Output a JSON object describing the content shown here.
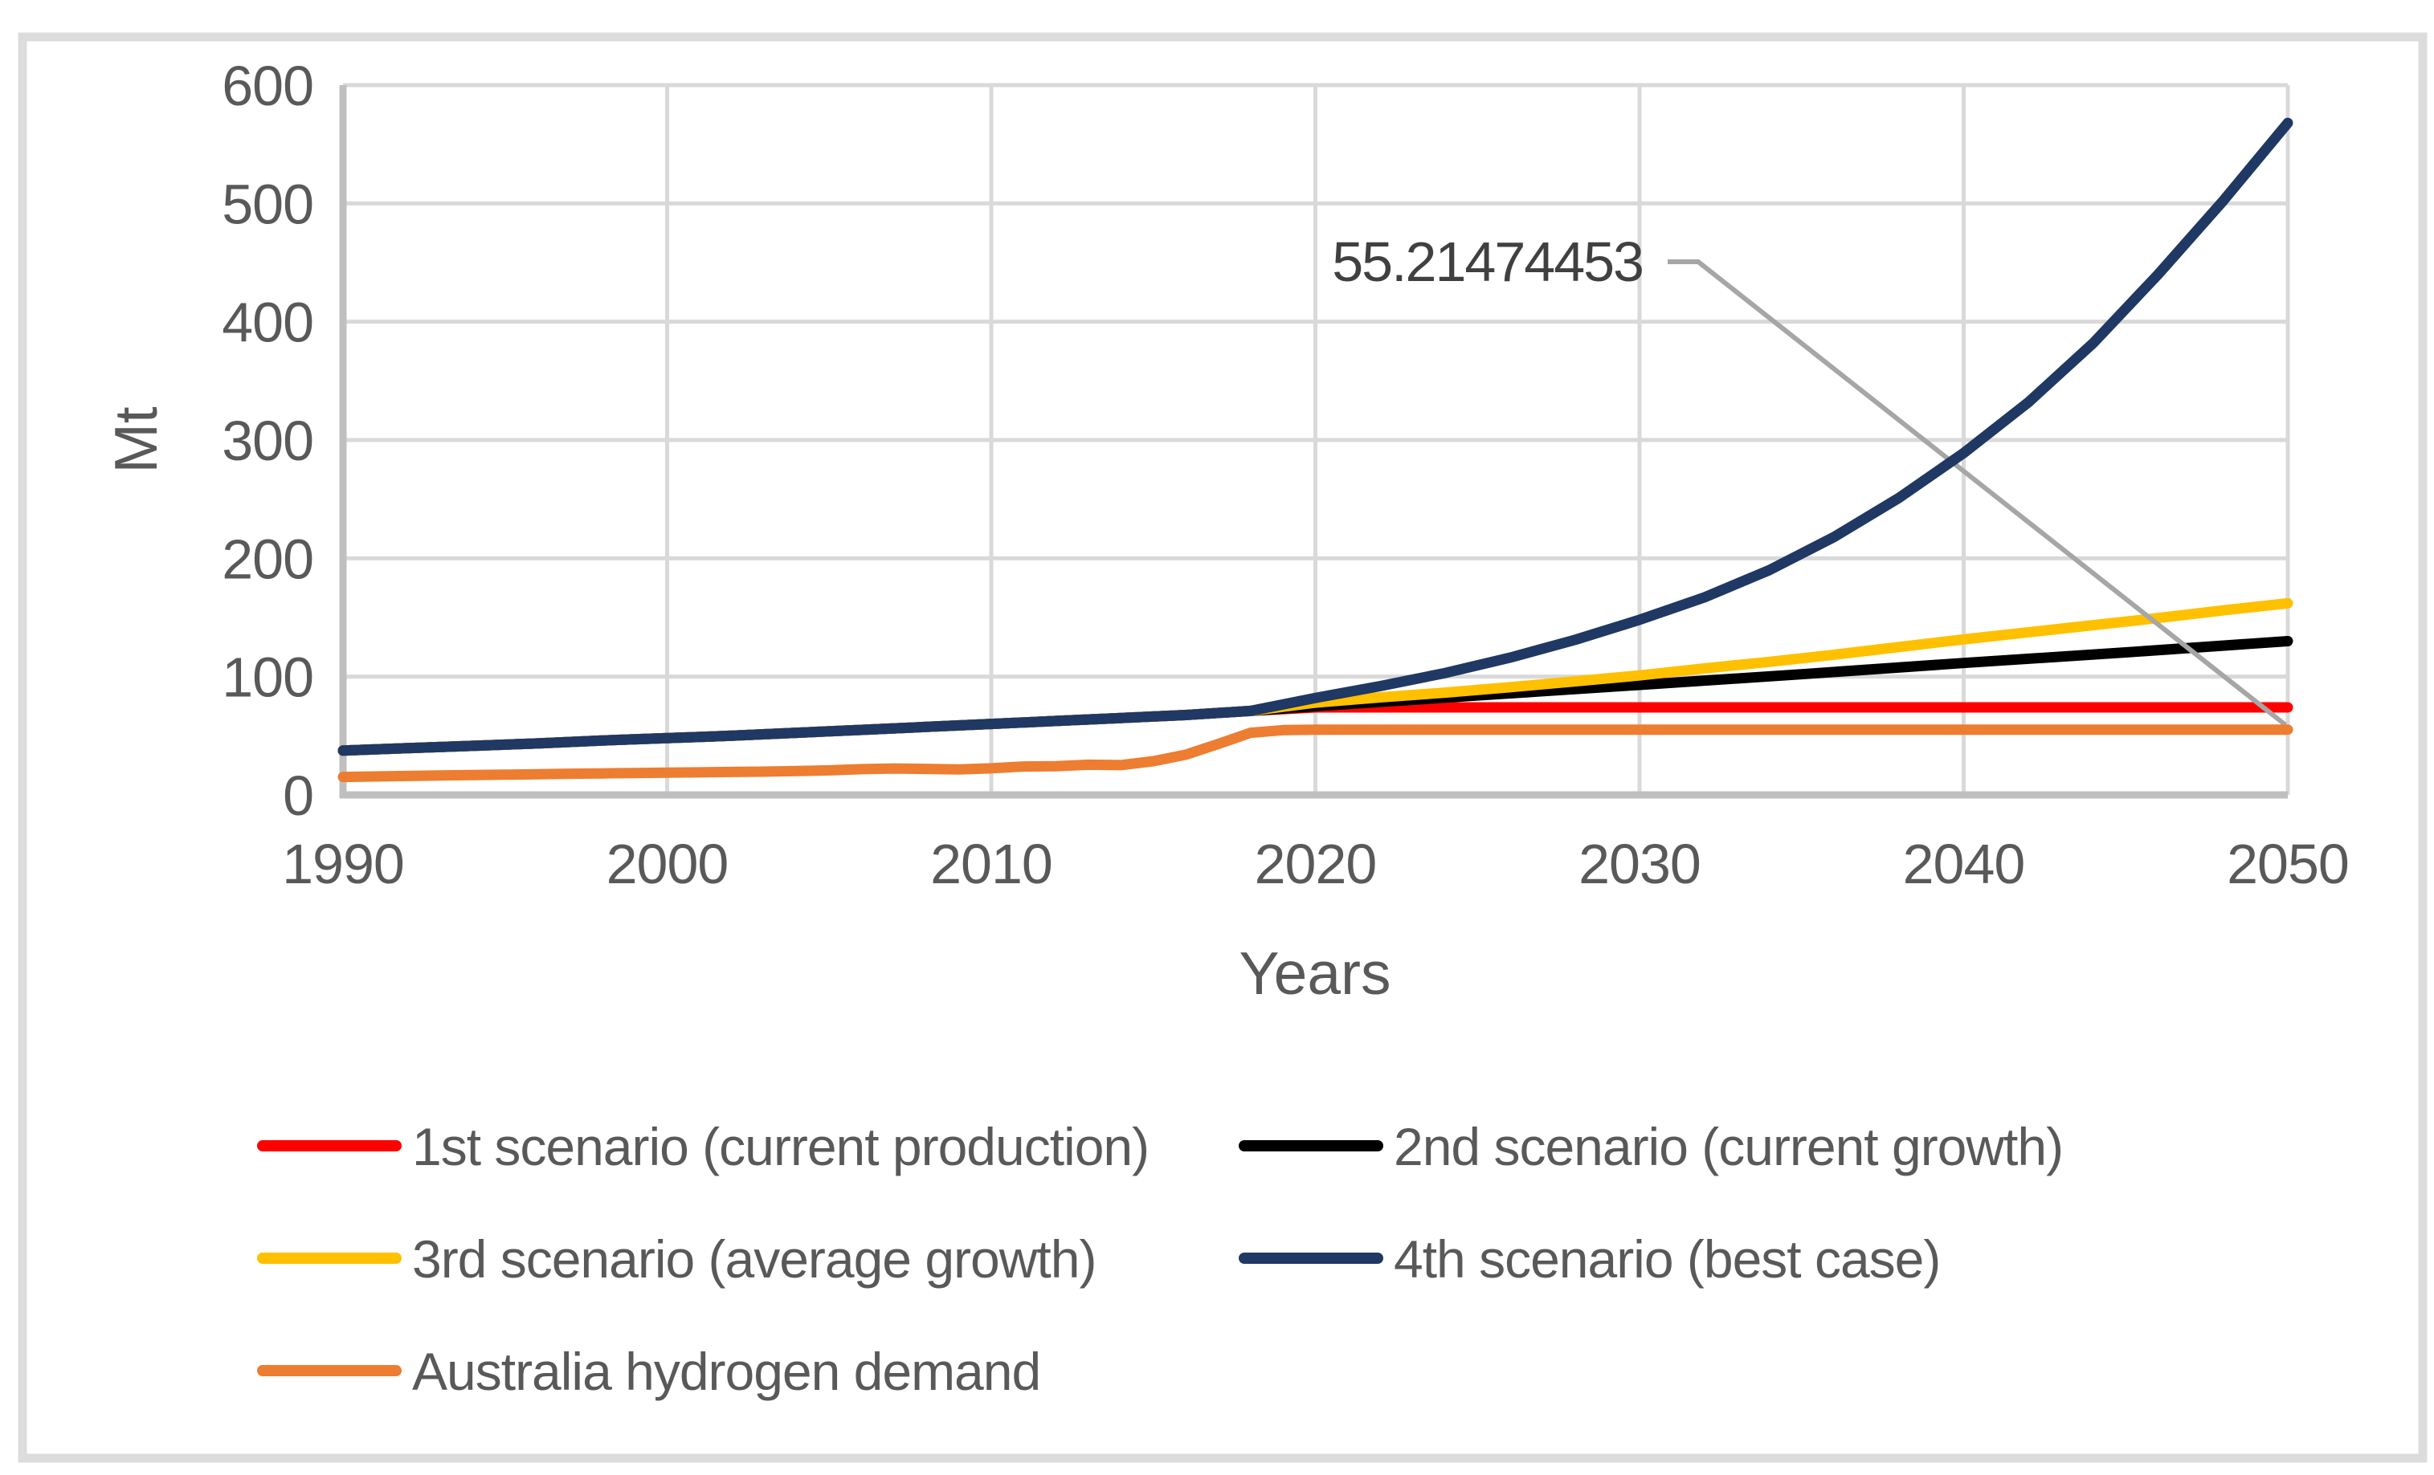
{
  "figure": {
    "y_axis_title": "Mt",
    "x_axis_title": "Years",
    "annotation_label": "55.21474453"
  },
  "chart_data": {
    "type": "line",
    "title": "",
    "xlabel": "Years",
    "ylabel": "Mt",
    "xlim": [
      1990,
      2050
    ],
    "ylim": [
      0,
      600
    ],
    "x_ticks": [
      1990,
      2000,
      2010,
      2020,
      2030,
      2040,
      2050
    ],
    "y_ticks": [
      0,
      100,
      200,
      300,
      400,
      500,
      600
    ],
    "grid": true,
    "legend_position": "bottom-left-two-columns",
    "annotation": {
      "label": "55.21474453",
      "value": 55.21474453,
      "year": 2050,
      "series": "Australia hydrogen demand"
    },
    "colors": {
      "scenario1": "#ff0000",
      "scenario2": "#000000",
      "scenario3": "#ffc000",
      "scenario4": "#1f3864",
      "demand": "#ed7d31",
      "gridline": "#d9d9d9",
      "axis": "#bfbfbf",
      "leader": "#a6a6a6",
      "tick_text": "#595959"
    },
    "shared_history": [
      [
        1990,
        37.5
      ],
      [
        1992,
        39.5
      ],
      [
        1994,
        41.5
      ],
      [
        1996,
        43.5
      ],
      [
        1998,
        46
      ],
      [
        2000,
        48
      ],
      [
        2002,
        50
      ],
      [
        2004,
        52.5
      ],
      [
        2006,
        55
      ],
      [
        2008,
        57.5
      ],
      [
        2010,
        60
      ],
      [
        2012,
        62.5
      ],
      [
        2014,
        65
      ],
      [
        2016,
        67.5
      ],
      [
        2018,
        71
      ]
    ],
    "series": [
      {
        "name": "1st scenario (current production)",
        "color": "#ff0000",
        "uses_shared_history": true,
        "points": [
          [
            2020,
            74
          ],
          [
            2025,
            74
          ],
          [
            2030,
            74
          ],
          [
            2035,
            74
          ],
          [
            2040,
            74
          ],
          [
            2045,
            74
          ],
          [
            2050,
            74
          ]
        ]
      },
      {
        "name": "2nd scenario (current growth)",
        "color": "#000000",
        "uses_shared_history": true,
        "points": [
          [
            2020,
            75
          ],
          [
            2025,
            84
          ],
          [
            2030,
            93
          ],
          [
            2035,
            102
          ],
          [
            2040,
            111.5
          ],
          [
            2045,
            120.5
          ],
          [
            2050,
            130
          ]
        ]
      },
      {
        "name": "3rd scenario (average growth)",
        "color": "#ffc000",
        "uses_shared_history": true,
        "points": [
          [
            2020,
            78
          ],
          [
            2022,
            82.5
          ],
          [
            2024,
            86.5
          ],
          [
            2026,
            91
          ],
          [
            2028,
            96
          ],
          [
            2030,
            101
          ],
          [
            2032,
            107
          ],
          [
            2034,
            112.5
          ],
          [
            2036,
            118.5
          ],
          [
            2038,
            125
          ],
          [
            2040,
            131.5
          ],
          [
            2042,
            137.5
          ],
          [
            2044,
            143.5
          ],
          [
            2046,
            149.5
          ],
          [
            2048,
            156
          ],
          [
            2050,
            162
          ]
        ]
      },
      {
        "name": "4th scenario (best case)",
        "color": "#1f3864",
        "uses_shared_history": true,
        "points": [
          [
            2020,
            82
          ],
          [
            2022,
            92
          ],
          [
            2024,
            103
          ],
          [
            2026,
            116
          ],
          [
            2028,
            131
          ],
          [
            2030,
            148
          ],
          [
            2032,
            167
          ],
          [
            2034,
            190
          ],
          [
            2036,
            218
          ],
          [
            2038,
            251
          ],
          [
            2040,
            289
          ],
          [
            2042,
            332
          ],
          [
            2044,
            382
          ],
          [
            2046,
            440
          ],
          [
            2048,
            502
          ],
          [
            2050,
            568
          ]
        ]
      },
      {
        "name": "Australia hydrogen demand",
        "color": "#ed7d31",
        "uses_shared_history": false,
        "points": [
          [
            1990,
            15.2
          ],
          [
            1991,
            15.6
          ],
          [
            1992,
            16
          ],
          [
            1993,
            16.4
          ],
          [
            1994,
            16.8
          ],
          [
            1995,
            17.1
          ],
          [
            1996,
            17.5
          ],
          [
            1997,
            17.9
          ],
          [
            1998,
            18.2
          ],
          [
            1999,
            18.5
          ],
          [
            2000,
            18.8
          ],
          [
            2001,
            19.1
          ],
          [
            2002,
            19.4
          ],
          [
            2003,
            19.7
          ],
          [
            2004,
            20.2
          ],
          [
            2005,
            20.8
          ],
          [
            2006,
            21.8
          ],
          [
            2007,
            22.3
          ],
          [
            2008,
            22
          ],
          [
            2009,
            21.6
          ],
          [
            2010,
            22.5
          ],
          [
            2011,
            24
          ],
          [
            2012,
            24.3
          ],
          [
            2013,
            25.5
          ],
          [
            2014,
            25.2
          ],
          [
            2015,
            28.5
          ],
          [
            2016,
            34
          ],
          [
            2017,
            43
          ],
          [
            2018,
            52.5
          ],
          [
            2019,
            54.8
          ],
          [
            2020,
            55.2
          ],
          [
            2025,
            55.2
          ],
          [
            2030,
            55.2
          ],
          [
            2035,
            55.2
          ],
          [
            2040,
            55.2
          ],
          [
            2045,
            55.2
          ],
          [
            2050,
            55.21474453
          ]
        ]
      }
    ]
  }
}
